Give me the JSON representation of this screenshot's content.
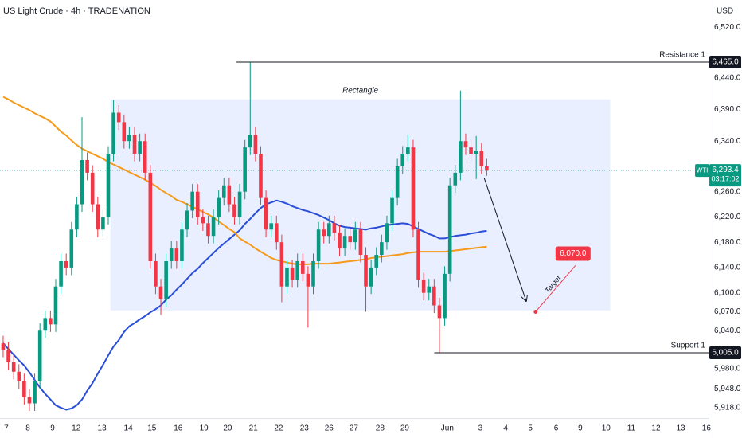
{
  "chart_data": {
    "type": "candlestick",
    "title": "US Light Crude · 4h · TRADENATION",
    "currency": "USD",
    "xlim": [
      -0.6,
      134.2
    ],
    "ylim": [
      5901.7,
      6563.3
    ],
    "xticks": [
      {
        "value": 0.6,
        "label": "7"
      },
      {
        "value": 4.7,
        "label": "8"
      },
      {
        "value": 9.4,
        "label": "9"
      },
      {
        "value": 13.9,
        "label": "12"
      },
      {
        "value": 18.8,
        "label": "13"
      },
      {
        "value": 23.8,
        "label": "14"
      },
      {
        "value": 28.3,
        "label": "15"
      },
      {
        "value": 33.3,
        "label": "16"
      },
      {
        "value": 38.2,
        "label": "19"
      },
      {
        "value": 42.7,
        "label": "20"
      },
      {
        "value": 47.6,
        "label": "21"
      },
      {
        "value": 52.4,
        "label": "22"
      },
      {
        "value": 57.3,
        "label": "23"
      },
      {
        "value": 62.0,
        "label": "26"
      },
      {
        "value": 66.7,
        "label": "27"
      },
      {
        "value": 71.7,
        "label": "28"
      },
      {
        "value": 76.4,
        "label": "29"
      },
      {
        "value": 84.5,
        "label": "Jun"
      },
      {
        "value": 90.8,
        "label": "3"
      },
      {
        "value": 95.6,
        "label": "4"
      },
      {
        "value": 100.3,
        "label": "5"
      },
      {
        "value": 105.2,
        "label": "6"
      },
      {
        "value": 109.8,
        "label": "9"
      },
      {
        "value": 114.7,
        "label": "10"
      },
      {
        "value": 119.5,
        "label": "11"
      },
      {
        "value": 124.2,
        "label": "12"
      },
      {
        "value": 128.9,
        "label": "13"
      },
      {
        "value": 133.8,
        "label": "16"
      }
    ],
    "yticks": [
      {
        "value": 6520,
        "label": "6,520.0"
      },
      {
        "value": 6440,
        "label": "6,440.0"
      },
      {
        "value": 6390,
        "label": "6,390.0"
      },
      {
        "value": 6340,
        "label": "6,340.0"
      },
      {
        "value": 6260,
        "label": "6,260.0"
      },
      {
        "value": 6220,
        "label": "6,220.0"
      },
      {
        "value": 6180,
        "label": "6,180.0"
      },
      {
        "value": 6140,
        "label": "6,140.0"
      },
      {
        "value": 6100,
        "label": "6,100.0"
      },
      {
        "value": 6070,
        "label": "6,070.0"
      },
      {
        "value": 6040,
        "label": "6,040.0"
      },
      {
        "value": 5980,
        "label": "5,980.0"
      },
      {
        "value": 5948,
        "label": "5,948.0"
      },
      {
        "value": 5918,
        "label": "5,918.0"
      }
    ],
    "candles": {
      "up_color": "#089981",
      "down_color": "#f23645",
      "open": [
        6020,
        6010,
        5990,
        5975,
        5960,
        5935,
        5925,
        5960,
        6040,
        6060,
        6050,
        6110,
        6150,
        6140,
        6200,
        6240,
        6310,
        6290,
        6240,
        6200,
        6220,
        6320,
        6385,
        6370,
        6340,
        6350,
        6320,
        6340,
        6290,
        6150,
        6110,
        6090,
        6150,
        6170,
        6150,
        6200,
        6230,
        6260,
        6220,
        6210,
        6190,
        6220,
        6250,
        6270,
        6240,
        6220,
        6260,
        6330,
        6350,
        6320,
        6250,
        6200,
        6210,
        6180,
        6110,
        6140,
        6120,
        6150,
        6130,
        6110,
        6150,
        6200,
        6190,
        6210,
        6195,
        6170,
        6190,
        6180,
        6200,
        6160,
        6110,
        6140,
        6160,
        6180,
        6210,
        6250,
        6300,
        6320,
        6330,
        6200,
        6120,
        6100,
        6110,
        6080,
        6060,
        6130,
        6270,
        6290,
        6340,
        6330,
        6320,
        6325,
        6300
      ],
      "high": [
        6032,
        6022,
        6002,
        5987,
        5972,
        5947,
        5972,
        6052,
        6072,
        6072,
        6122,
        6162,
        6162,
        6212,
        6252,
        6378,
        6322,
        6302,
        6252,
        6232,
        6332,
        6405,
        6397,
        6382,
        6362,
        6362,
        6352,
        6352,
        6302,
        6162,
        6122,
        6162,
        6182,
        6182,
        6212,
        6242,
        6272,
        6272,
        6232,
        6222,
        6232,
        6262,
        6282,
        6282,
        6252,
        6272,
        6342,
        6465,
        6362,
        6332,
        6262,
        6222,
        6222,
        6192,
        6152,
        6152,
        6162,
        6162,
        6142,
        6162,
        6212,
        6212,
        6222,
        6222,
        6207,
        6202,
        6202,
        6212,
        6212,
        6172,
        6152,
        6172,
        6192,
        6222,
        6262,
        6312,
        6332,
        6350,
        6342,
        6212,
        6132,
        6122,
        6122,
        6092,
        6142,
        6282,
        6302,
        6420,
        6352,
        6342,
        6348,
        6337,
        6312
      ],
      "low": [
        5998,
        5978,
        5963,
        5948,
        5923,
        5913,
        5913,
        5948,
        6028,
        6038,
        6038,
        6098,
        6128,
        6128,
        6188,
        6228,
        6278,
        6228,
        6188,
        6188,
        6208,
        6308,
        6358,
        6328,
        6328,
        6308,
        6308,
        6278,
        6138,
        6098,
        6065,
        6078,
        6138,
        6138,
        6138,
        6188,
        6218,
        6208,
        6198,
        6178,
        6178,
        6208,
        6238,
        6228,
        6208,
        6208,
        6248,
        6318,
        6308,
        6238,
        6188,
        6188,
        6168,
        6085,
        6098,
        6108,
        6108,
        6118,
        6045,
        6098,
        6138,
        6178,
        6178,
        6183,
        6158,
        6158,
        6168,
        6168,
        6148,
        6070,
        6098,
        6128,
        6148,
        6168,
        6198,
        6238,
        6288,
        6308,
        6188,
        6108,
        6088,
        6088,
        6068,
        6005,
        6048,
        6118,
        6258,
        6278,
        6318,
        6308,
        6280,
        6288,
        6285
      ],
      "close": [
        6010,
        5990,
        5975,
        5960,
        5935,
        5925,
        5960,
        6040,
        6060,
        6050,
        6110,
        6150,
        6140,
        6200,
        6240,
        6310,
        6290,
        6240,
        6200,
        6220,
        6320,
        6385,
        6370,
        6340,
        6350,
        6320,
        6340,
        6290,
        6150,
        6110,
        6090,
        6150,
        6170,
        6150,
        6200,
        6230,
        6260,
        6220,
        6210,
        6190,
        6220,
        6250,
        6270,
        6240,
        6220,
        6260,
        6330,
        6350,
        6320,
        6250,
        6200,
        6210,
        6180,
        6110,
        6140,
        6120,
        6150,
        6130,
        6110,
        6150,
        6200,
        6190,
        6210,
        6195,
        6170,
        6190,
        6180,
        6200,
        6160,
        6110,
        6140,
        6160,
        6180,
        6210,
        6250,
        6300,
        6320,
        6330,
        6200,
        6120,
        6100,
        6110,
        6080,
        6060,
        6130,
        6270,
        6290,
        6340,
        6330,
        6320,
        6325,
        6300,
        6293.4
      ]
    },
    "series": [
      {
        "color": "#2a4ed8",
        "values": [
          6020,
          6011,
          6002,
          5993,
          5985,
          5974,
          5962,
          5950,
          5940,
          5931,
          5922,
          5918,
          5915,
          5917,
          5922,
          5931,
          5945,
          5957,
          5972,
          5986,
          6001,
          6015,
          6025,
          6038,
          6047,
          6052,
          6058,
          6063,
          6069,
          6074,
          6080,
          6089,
          6096,
          6105,
          6113,
          6122,
          6131,
          6138,
          6147,
          6155,
          6163,
          6171,
          6178,
          6185,
          6192,
          6199,
          6209,
          6217,
          6226,
          6234,
          6240,
          6243,
          6246,
          6244,
          6241,
          6237,
          6234,
          6231,
          6229,
          6226,
          6223,
          6219,
          6215,
          6210,
          6206,
          6204,
          6203,
          6202,
          6201,
          6200,
          6202,
          6203,
          6205,
          6207,
          6208,
          6209,
          6210,
          6209,
          6205,
          6201,
          6197,
          6193,
          6190,
          6186,
          6186,
          6188,
          6190,
          6191,
          6192,
          6194,
          6195,
          6197,
          6198
        ]
      },
      {
        "color": "#f59a1b",
        "values": [
          6410,
          6406,
          6401,
          6397,
          6393,
          6389,
          6384,
          6380,
          6376,
          6371,
          6363,
          6355,
          6349,
          6341,
          6334,
          6328,
          6324,
          6320,
          6316,
          6312,
          6307,
          6303,
          6299,
          6295,
          6291,
          6287,
          6283,
          6279,
          6274,
          6269,
          6263,
          6258,
          6253,
          6247,
          6244,
          6240,
          6236,
          6232,
          6228,
          6224,
          6219,
          6213,
          6207,
          6201,
          6196,
          6186,
          6181,
          6176,
          6170,
          6165,
          6160,
          6155,
          6152,
          6150,
          6148,
          6146,
          6145,
          6145,
          6145,
          6146,
          6146,
          6146,
          6146,
          6147,
          6148,
          6149,
          6150,
          6151,
          6152,
          6153,
          6155,
          6156,
          6157,
          6158,
          6159,
          6160,
          6161,
          6163,
          6164,
          6165,
          6165,
          6165,
          6165,
          6165,
          6165,
          6166,
          6167,
          6168,
          6169,
          6170,
          6171,
          6172,
          6173
        ]
      }
    ],
    "rectangle": {
      "label": "Rectangle",
      "color": "#2962ff",
      "x": [
        20.4,
        115.5
      ],
      "y": [
        6072,
        6406
      ]
    },
    "resistance": {
      "label": "Resistance 1",
      "value": 6465,
      "value_label": "6,465.0",
      "x_start": 44.4
    },
    "support": {
      "label": "Support 1",
      "value": 6005,
      "value_label": "6,005.0",
      "x_start": 82.0
    },
    "last_price": {
      "name": "WTI",
      "value": 6293.4,
      "value_label": "6,293.4",
      "countdown": "03:17:02",
      "color": "#089981"
    },
    "projection": {
      "from": [
        91.5,
        6282
      ],
      "to": [
        99.5,
        6087
      ]
    },
    "target": {
      "label": "Target",
      "value": 6070,
      "value_label": "6,070.0",
      "x": 101.3,
      "color": "#f23645"
    }
  }
}
